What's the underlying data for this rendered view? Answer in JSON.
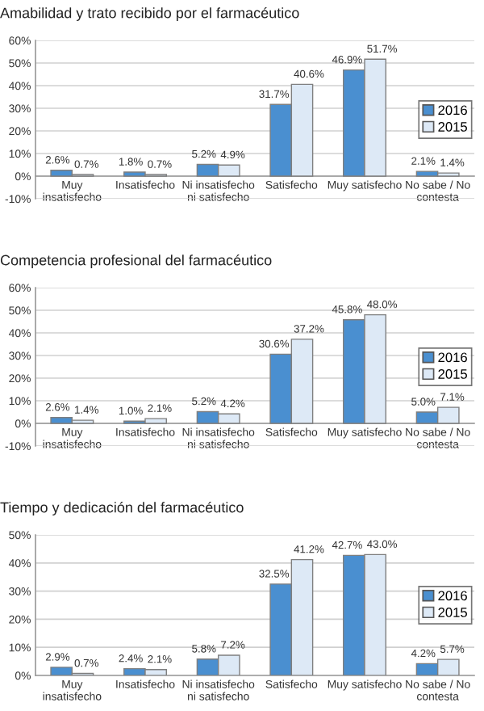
{
  "chart_data": [
    {
      "type": "bar",
      "title": "Amabilidad y trato recibido por el farmacéutico",
      "categories": [
        "Muy\ninsatisfecho",
        "Insatisfecho",
        "Ni insatisfecho\nni satisfecho",
        "Satisfecho",
        "Muy satisfecho",
        "No sabe / No\ncontesta"
      ],
      "series": [
        {
          "name": "2016",
          "color": "#4a8fd0",
          "values": [
            2.6,
            1.8,
            5.2,
            31.7,
            46.9,
            2.1
          ],
          "value_labels": [
            "2.6%",
            "1.8%",
            "5.2%",
            "31.7%",
            "46.9%",
            "2.1%"
          ]
        },
        {
          "name": "2015",
          "color": "#dde9f6",
          "values": [
            0.7,
            0.7,
            4.9,
            40.6,
            51.7,
            1.4
          ],
          "value_labels": [
            "0.7%",
            "0.7%",
            "4.9%",
            "40.6%",
            "51.7%",
            "1.4%"
          ]
        }
      ],
      "ylim": [
        -10,
        60
      ],
      "yticks": [
        {
          "value": -10,
          "label": "-10%"
        },
        {
          "value": 0,
          "label": "0%"
        },
        {
          "value": 10,
          "label": "10%"
        },
        {
          "value": 20,
          "label": "20%"
        },
        {
          "value": 30,
          "label": "30%"
        },
        {
          "value": 40,
          "label": "40%"
        },
        {
          "value": 50,
          "label": "50%"
        },
        {
          "value": 60,
          "label": "60%"
        }
      ],
      "grid": "y",
      "legend": "right"
    },
    {
      "type": "bar",
      "title": "Competencia profesional del farmacéutico",
      "categories": [
        "Muy\ninsatisfecho",
        "Insatisfecho",
        "Ni insatisfecho\nni satisfecho",
        "Satisfecho",
        "Muy satisfecho",
        "No sabe / No\ncontesta"
      ],
      "series": [
        {
          "name": "2016",
          "color": "#4a8fd0",
          "values": [
            2.6,
            1.0,
            5.2,
            30.6,
            45.8,
            5.0
          ],
          "value_labels": [
            "2.6%",
            "1.0%",
            "5.2%",
            "30.6%",
            "45.8%",
            "5.0%"
          ]
        },
        {
          "name": "2015",
          "color": "#dde9f6",
          "values": [
            1.4,
            2.1,
            4.2,
            37.2,
            48.0,
            7.1
          ],
          "value_labels": [
            "1.4%",
            "2.1%",
            "4.2%",
            "37.2%",
            "48.0%",
            "7.1%"
          ]
        }
      ],
      "ylim": [
        -10,
        60
      ],
      "yticks": [
        {
          "value": -10,
          "label": "-10%"
        },
        {
          "value": 0,
          "label": "0%"
        },
        {
          "value": 10,
          "label": "10%"
        },
        {
          "value": 20,
          "label": "20%"
        },
        {
          "value": 30,
          "label": "30%"
        },
        {
          "value": 40,
          "label": "40%"
        },
        {
          "value": 50,
          "label": "50%"
        },
        {
          "value": 60,
          "label": "60%"
        }
      ],
      "grid": "y",
      "legend": "right"
    },
    {
      "type": "bar",
      "title": "Tiempo y dedicación del farmacéutico",
      "categories": [
        "Muy\ninsatisfecho",
        "Insatisfecho",
        "Ni insatisfecho\nni satisfecho",
        "Satisfecho",
        "Muy satisfecho",
        "No sabe / No\ncontesta"
      ],
      "series": [
        {
          "name": "2016",
          "color": "#4a8fd0",
          "values": [
            2.9,
            2.4,
            5.8,
            32.5,
            42.7,
            4.2
          ],
          "value_labels": [
            "2.9%",
            "2.4%",
            "5.8%",
            "32.5%",
            "42.7%",
            "4.2%"
          ]
        },
        {
          "name": "2015",
          "color": "#dde9f6",
          "values": [
            0.7,
            2.1,
            7.2,
            41.2,
            43.0,
            5.7
          ],
          "value_labels": [
            "0.7%",
            "2.1%",
            "7.2%",
            "41.2%",
            "43.0%",
            "5.7%"
          ]
        }
      ],
      "ylim": [
        0,
        50
      ],
      "yticks": [
        {
          "value": 0,
          "label": "0%"
        },
        {
          "value": 10,
          "label": "10%"
        },
        {
          "value": 20,
          "label": "20%"
        },
        {
          "value": 30,
          "label": "30%"
        },
        {
          "value": 40,
          "label": "40%"
        },
        {
          "value": 50,
          "label": "50%"
        }
      ],
      "grid": "y",
      "legend": "right"
    }
  ]
}
